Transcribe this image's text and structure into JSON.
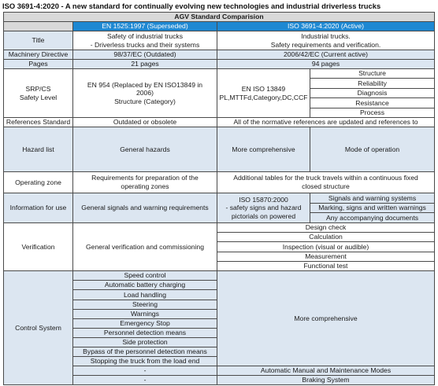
{
  "title": "ISO 3691-4:2020 - A new standard for continually evolving new technologies and industrial driverless trucks",
  "table": {
    "heading": "AGV Standard Comparision",
    "col_old": "EN 1525:1997 (Superseded)",
    "col_new": "ISO 3691-4:2020 (Active)",
    "rows": {
      "title": {
        "label": "Title",
        "old": [
          "Safety of industrial trucks",
          "- Driverless trucks and their systems"
        ],
        "new": [
          "Industrial trucks.",
          "Safety requirements and verification."
        ]
      },
      "machinery": {
        "label": "Machinery Directive",
        "old": "98/37/EC (Outdated)",
        "new": "2006/42/EC (Current active)"
      },
      "pages": {
        "label": "Pages",
        "old": "21 pages",
        "new": "94 pages"
      },
      "srp": {
        "label": [
          "SRP/CS",
          "Safety Level"
        ],
        "old": [
          "EN 954 (Replaced by EN ISO13849 in",
          "2006)",
          "Structure (Category)"
        ],
        "new": [
          "EN ISO 13849",
          "PL,MTTFd,Category,DC,CCF"
        ],
        "new_items": [
          "Structure",
          "Reliability",
          "Diagnosis",
          "Resistance",
          "Process"
        ]
      },
      "references": {
        "label": "References Standard",
        "old": "Outdated or obsolete",
        "new": "All of the normative references are updated and references to"
      },
      "hazard": {
        "label": "Hazard list",
        "old": "General hazards",
        "new_a": "More comprehensive",
        "new_b": "Mode of operation"
      },
      "zone": {
        "label": "Operating zone",
        "old": [
          "Requirements for preparation of the",
          "operating zones"
        ],
        "new": [
          "Additional tables for the truck travels within a continuous fixed",
          "closed structure"
        ]
      },
      "info": {
        "label": "Information for use",
        "old": "General signals and warning requirements",
        "new_a": [
          "ISO 15870:2000",
          "- safety signs and hazard",
          "pictorials on powered"
        ],
        "new_items": [
          "Signals and warning systems",
          "Marking, signs and written warnings",
          "Any accompanying documents"
        ]
      },
      "verification": {
        "label": "Verification",
        "old": "General verification and commissioning",
        "new_items": [
          "Design check",
          "Calculation",
          "Inspection  (visual or audible)",
          "Measurement",
          "Functional test"
        ]
      },
      "control": {
        "label": "Control System",
        "old_items": [
          "Speed control",
          "Automatic battery charging",
          "Load handling",
          "Steering",
          "Warnings",
          "Emergency Stop",
          "Personnel detection means",
          "Side protection",
          "Bypass of the personnel detection means",
          "Stopping the truck from the load end",
          "-",
          "-"
        ],
        "new": "More comprehensive",
        "new_extra": [
          "Automatic Manual and Maintenance Modes",
          "Braking System"
        ]
      }
    }
  },
  "colors": {
    "header_gray": "#d9d9d9",
    "header_blue": "#1e88d2",
    "light_blue": "#dce6f1",
    "border": "#4a4a4a"
  }
}
